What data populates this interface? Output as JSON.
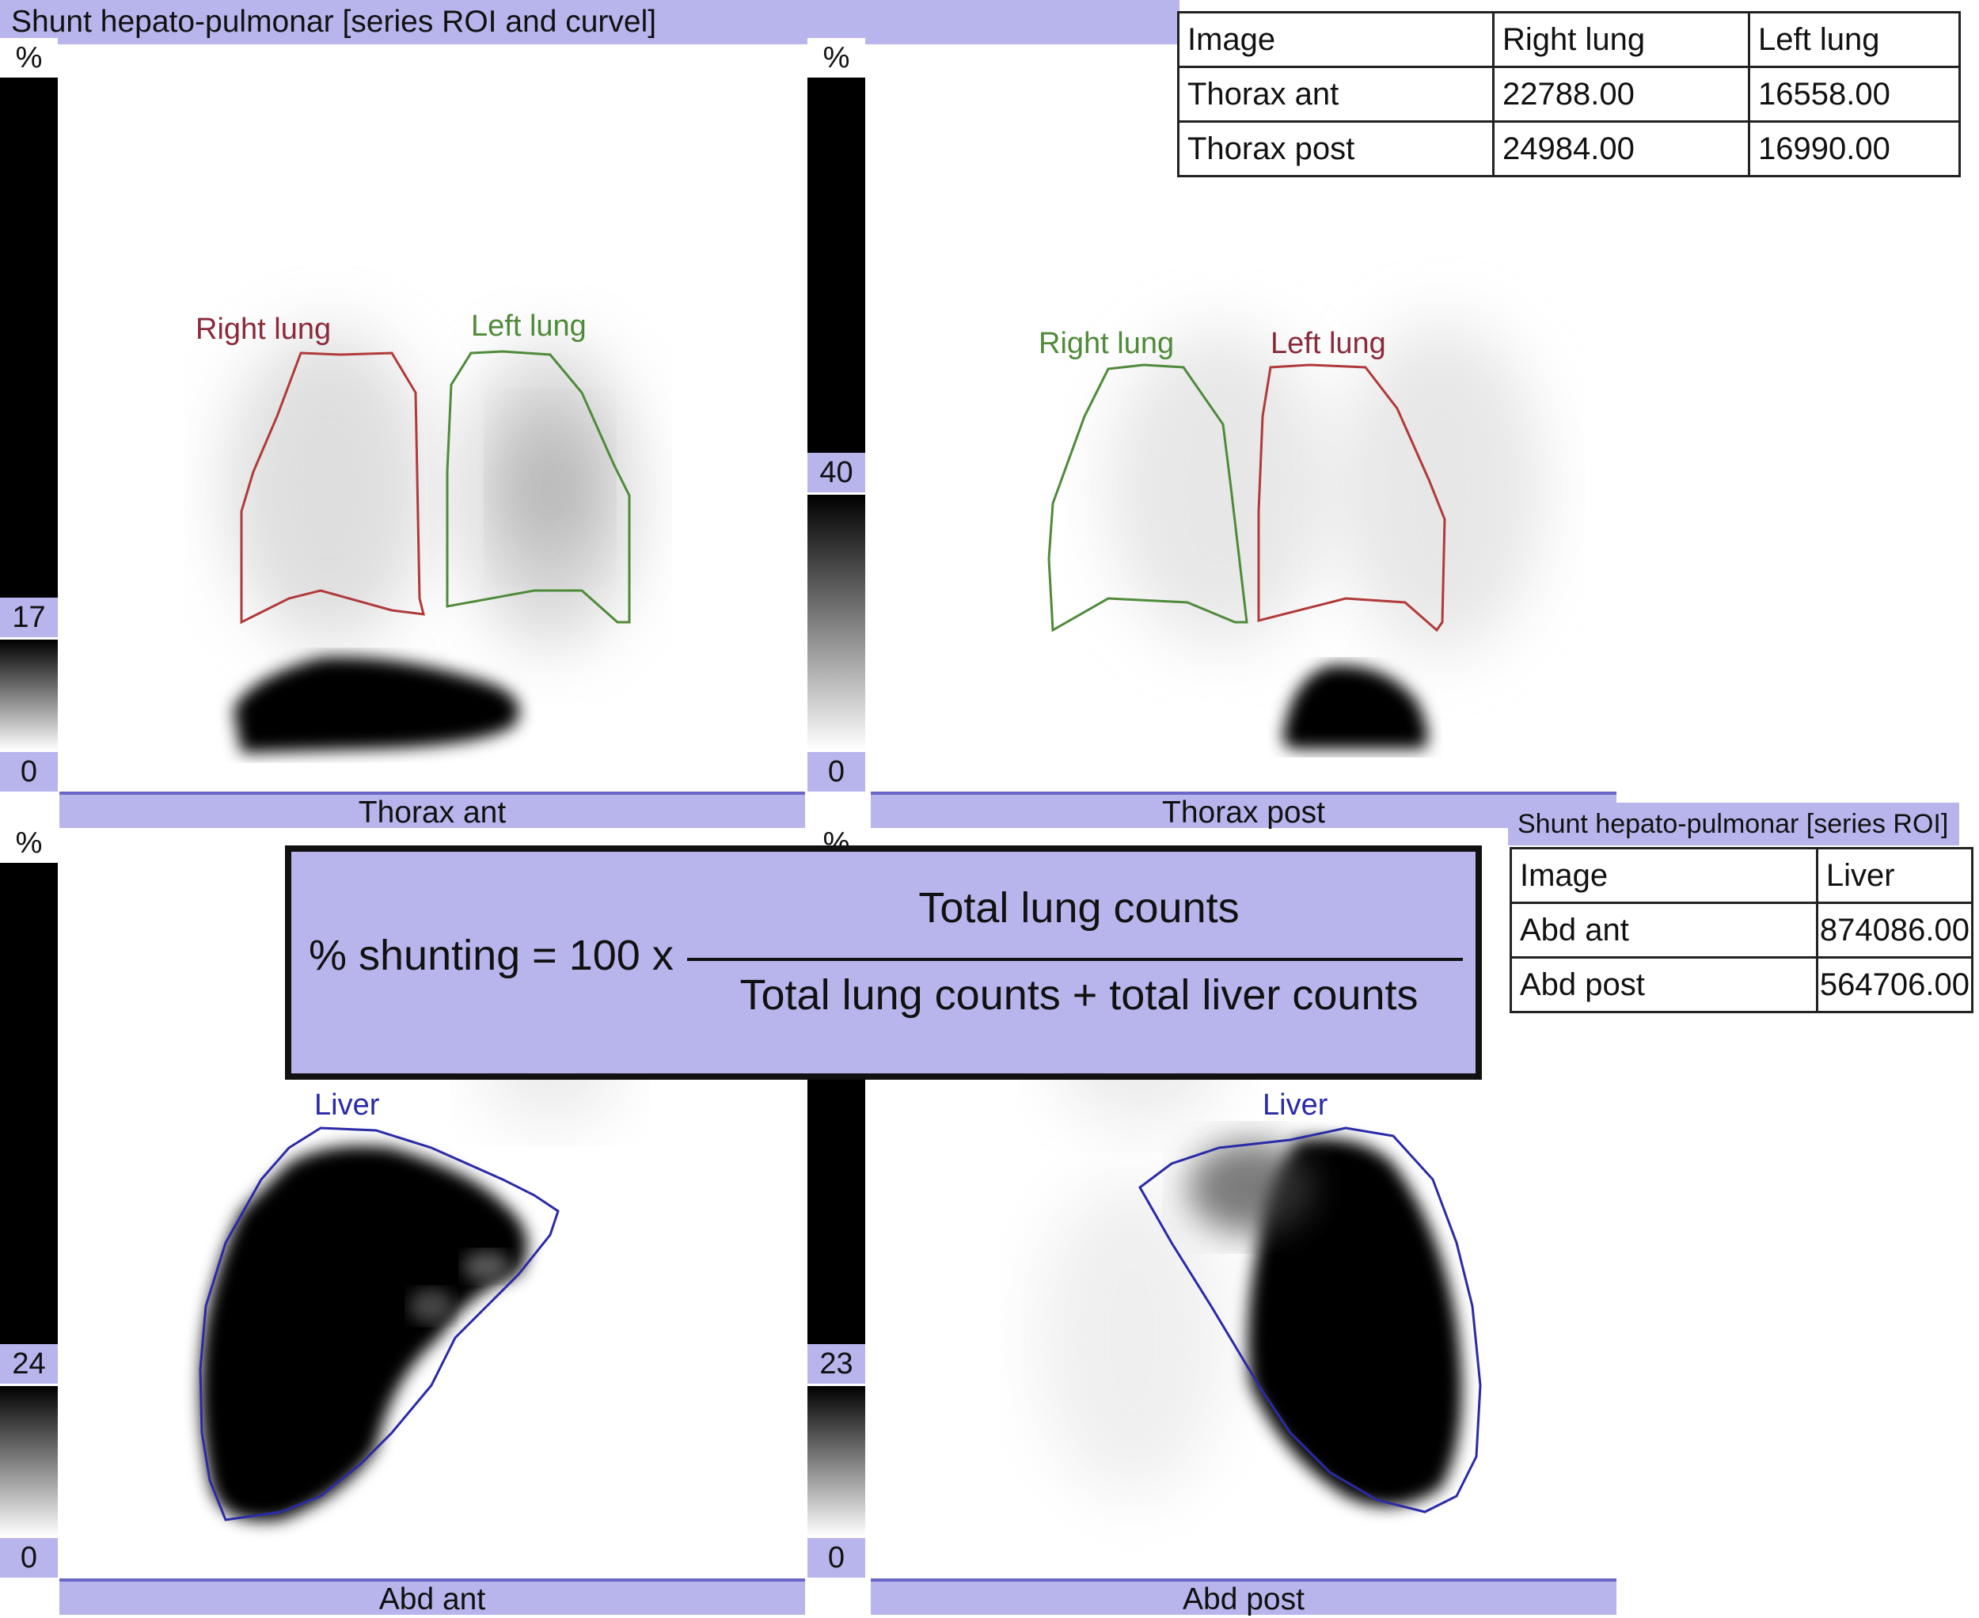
{
  "header": {
    "title": "Shunt hepato-pulmonar [series ROI and curvel]"
  },
  "scales": {
    "percent_symbol": "%",
    "thorax_ant": {
      "max": "17",
      "min": "0"
    },
    "thorax_post": {
      "max": "40",
      "min": "0"
    },
    "abd_ant": {
      "max": "24",
      "min": "0"
    },
    "abd_post": {
      "max": "23",
      "min": "0"
    }
  },
  "panels": {
    "thorax_ant": {
      "caption": "Thorax ant",
      "roi_right": "Right lung",
      "roi_left": "Left lung"
    },
    "thorax_post": {
      "caption": "Thorax post",
      "roi_right": "Right lung",
      "roi_left": "Left lung"
    },
    "abd_ant": {
      "caption": "Abd ant",
      "roi": "Liver"
    },
    "abd_post": {
      "caption": "Abd post",
      "roi": "Liver"
    }
  },
  "lung_table": {
    "headers": [
      "Image",
      "Right lung",
      "Left lung"
    ],
    "rows": [
      [
        "Thorax ant",
        "22788.00",
        "16558.00"
      ],
      [
        "Thorax post",
        "24984.00",
        "16990.00"
      ]
    ]
  },
  "liver_table": {
    "title": "Shunt hepato-pulmonar [series ROI]",
    "headers": [
      "Image",
      "Liver"
    ],
    "rows": [
      [
        "Abd ant",
        "874086.00"
      ],
      [
        "Abd post",
        "564706.00"
      ]
    ]
  },
  "formula": {
    "lhs": "% shunting = 100 x",
    "numerator": "Total lung counts",
    "denominator": "Total lung counts + total liver counts"
  },
  "colors": {
    "ui_lavender": "#b8b5ec",
    "roi_red": "#b03a3a",
    "roi_green": "#4f8a3a",
    "roi_blue": "#2a2aa8"
  }
}
